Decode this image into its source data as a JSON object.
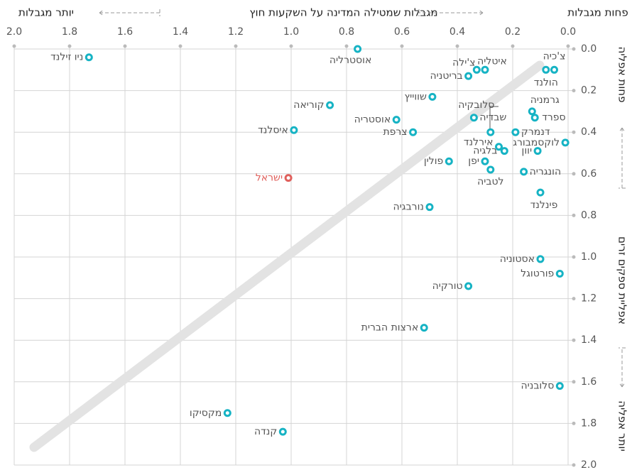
{
  "chart_data": {
    "type": "scatter",
    "x_label": "מגבלות שמטילה המדינה על השקעות חוץ",
    "x_label_left": "יותר מגבלות",
    "x_label_right": "פחות מגבלות",
    "y_label": "אפליית ספקים זרים",
    "y_label_top": "פחות אפליה",
    "y_label_bottom": "יותר אפליה",
    "labels": [
      "צ'כיה",
      "הולנד",
      "איטליה",
      "צ'ילה",
      "בריטניה",
      "אוסטרליה",
      "ניו זילנד",
      "שווייץ",
      "גרמניה",
      "ספרד",
      "קוריאה",
      "אוסטריה",
      "שבדיה",
      "סלובקיה",
      "דנמרק",
      "לוקסמבורג",
      "איסלנד",
      "צרפת",
      "אירלנד",
      "בלגיה",
      "יוון",
      "יפן",
      "לטביה",
      "פולין",
      "הונגריה",
      "פינלנד",
      "ישראל",
      "נורבגיה",
      "אסטוניה",
      "פורטוגל",
      "טורקיה",
      "ארצות הברית",
      "סלובניה",
      "מקסיקו",
      "קנדה"
    ],
    "x": [
      0.05,
      0.08,
      0.3,
      0.33,
      0.36,
      0.76,
      1.73,
      0.49,
      0.13,
      0.12,
      0.86,
      0.62,
      0.34,
      0.28,
      0.19,
      0.01,
      0.99,
      0.56,
      0.25,
      0.23,
      0.11,
      0.3,
      0.28,
      0.43,
      0.16,
      0.1,
      1.01,
      0.5,
      0.1,
      0.03,
      0.36,
      0.52,
      0.03,
      1.23,
      1.03
    ],
    "values": [
      0.1,
      0.1,
      0.1,
      0.1,
      0.13,
      0.0,
      0.04,
      0.23,
      0.3,
      0.33,
      0.27,
      0.34,
      0.33,
      0.4,
      0.4,
      0.45,
      0.39,
      0.4,
      0.47,
      0.49,
      0.49,
      0.54,
      0.58,
      0.54,
      0.59,
      0.69,
      0.62,
      0.76,
      1.01,
      1.08,
      1.14,
      1.34,
      1.62,
      1.75,
      1.84
    ],
    "color": "#16b3c4",
    "highlight_color": "#e0605c",
    "highlight": [
      "ישראל"
    ],
    "xlim": [
      2.0,
      0.0
    ],
    "ylim": [
      0.0,
      2.0
    ],
    "xticks": [
      {
        "value": 2.0,
        "label": "2.0"
      },
      {
        "value": 1.8,
        "label": "1.8"
      },
      {
        "value": 1.6,
        "label": "1.6"
      },
      {
        "value": 1.4,
        "label": "1.4"
      },
      {
        "value": 1.2,
        "label": "1.2"
      },
      {
        "value": 1.0,
        "label": "1.0"
      },
      {
        "value": 0.8,
        "label": "0.8"
      },
      {
        "value": 0.6,
        "label": "0.6"
      },
      {
        "value": 0.4,
        "label": "0.4"
      },
      {
        "value": 0.2,
        "label": "0.2"
      },
      {
        "value": 0.0,
        "label": "0.0"
      }
    ],
    "yticks": [
      {
        "value": 0.0,
        "label": "0.0"
      },
      {
        "value": 0.2,
        "label": "0.2"
      },
      {
        "value": 0.4,
        "label": "0.4"
      },
      {
        "value": 0.6,
        "label": "0.6"
      },
      {
        "value": 0.8,
        "label": "0.8"
      },
      {
        "value": 1.0,
        "label": "1.0"
      },
      {
        "value": 1.2,
        "label": "1.2"
      },
      {
        "value": 1.4,
        "label": "1.4"
      },
      {
        "value": 1.6,
        "label": "1.6"
      },
      {
        "value": 1.8,
        "label": "1.8"
      },
      {
        "value": 2.0,
        "label": "2.0"
      }
    ],
    "grid": true
  }
}
